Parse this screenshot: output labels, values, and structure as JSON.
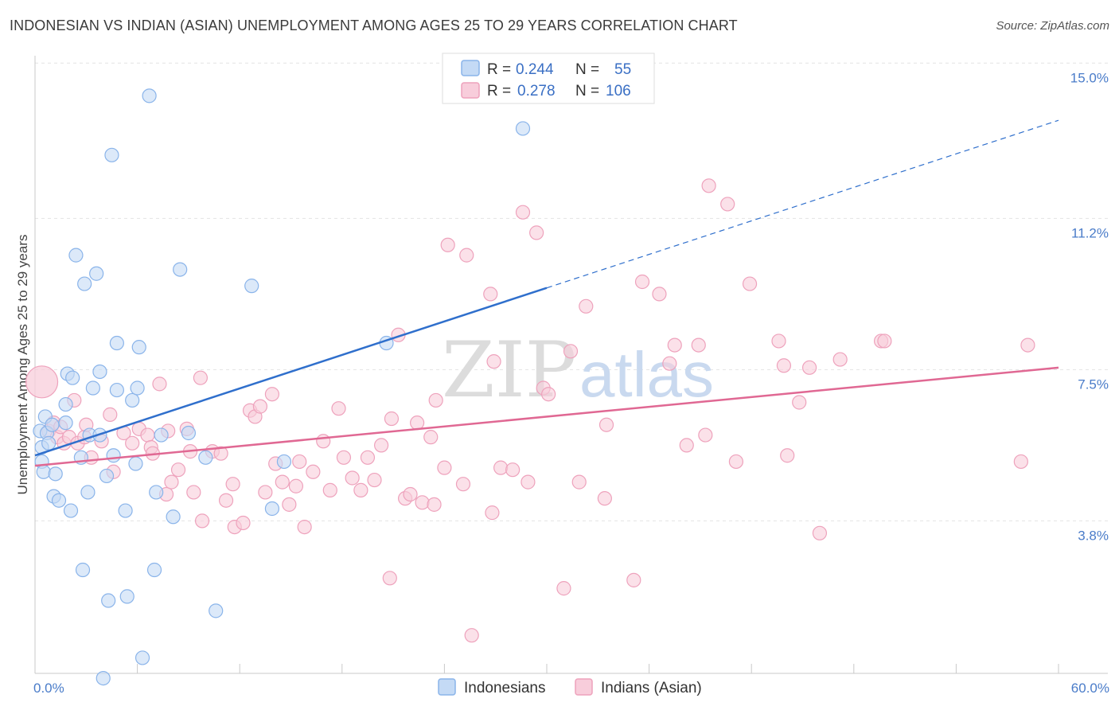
{
  "title": "INDONESIAN VS INDIAN (ASIAN) UNEMPLOYMENT AMONG AGES 25 TO 29 YEARS CORRELATION CHART",
  "source": "Source: ZipAtlas.com",
  "watermark": {
    "zip": "ZIP",
    "atlas": "atlas"
  },
  "chart_data": {
    "type": "scatter",
    "title": "INDONESIAN VS INDIAN (ASIAN) UNEMPLOYMENT AMONG AGES 25 TO 29 YEARS CORRELATION CHART",
    "xlabel": "",
    "ylabel": "Unemployment Among Ages 25 to 29 years",
    "xlim": [
      0,
      60
    ],
    "ylim": [
      0,
      15.4
    ],
    "x_tick_labels": {
      "min": "0.0%",
      "max": "60.0%"
    },
    "y_ticks": [
      {
        "value": 3.8,
        "label": "3.8%"
      },
      {
        "value": 7.5,
        "label": "7.5%"
      },
      {
        "value": 11.2,
        "label": "11.2%"
      },
      {
        "value": 15.0,
        "label": "15.0%"
      }
    ],
    "legend": {
      "r_label": "R =",
      "n_label": "N =",
      "entries": [
        {
          "name": "Indonesians",
          "r": "0.244",
          "n": "55",
          "color": "#8ab4ea",
          "fill": "#c4daf5",
          "line": "#2f6fcc"
        },
        {
          "name": "Indians (Asian)",
          "r": "0.278",
          "n": "106",
          "color": "#eea2bc",
          "fill": "#f8cddb",
          "line": "#e06893"
        }
      ]
    },
    "series": [
      {
        "name": "Indonesians",
        "trend": {
          "x": [
            0,
            30
          ],
          "y": [
            5.75,
            9.85
          ]
        },
        "trend_ext": {
          "x": [
            30,
            60
          ],
          "y": [
            9.85,
            13.95
          ]
        },
        "points": [
          [
            0.3,
            6.35
          ],
          [
            0.4,
            5.95
          ],
          [
            0.4,
            5.6
          ],
          [
            0.5,
            5.35
          ],
          [
            0.6,
            6.7
          ],
          [
            0.7,
            6.3
          ],
          [
            0.8,
            6.05
          ],
          [
            1.0,
            6.5
          ],
          [
            1.1,
            4.75
          ],
          [
            1.2,
            5.3
          ],
          [
            1.4,
            4.65
          ],
          [
            1.8,
            7.0
          ],
          [
            1.8,
            6.55
          ],
          [
            1.9,
            7.75
          ],
          [
            2.1,
            4.4
          ],
          [
            2.2,
            7.65
          ],
          [
            2.4,
            10.65
          ],
          [
            2.7,
            5.7
          ],
          [
            2.8,
            2.95
          ],
          [
            2.9,
            9.95
          ],
          [
            3.1,
            4.85
          ],
          [
            3.2,
            6.25
          ],
          [
            3.4,
            7.4
          ],
          [
            3.6,
            10.2
          ],
          [
            3.8,
            6.25
          ],
          [
            3.8,
            7.8
          ],
          [
            4.0,
            0.3
          ],
          [
            4.2,
            5.25
          ],
          [
            4.3,
            2.2
          ],
          [
            4.5,
            13.1
          ],
          [
            4.6,
            5.75
          ],
          [
            4.8,
            8.5
          ],
          [
            4.8,
            7.35
          ],
          [
            5.3,
            4.4
          ],
          [
            5.4,
            2.3
          ],
          [
            5.7,
            7.1
          ],
          [
            5.9,
            5.55
          ],
          [
            6.0,
            7.4
          ],
          [
            6.1,
            8.4
          ],
          [
            6.3,
            0.8
          ],
          [
            6.7,
            14.55
          ],
          [
            7.0,
            2.95
          ],
          [
            7.1,
            4.85
          ],
          [
            7.4,
            6.25
          ],
          [
            8.1,
            4.25
          ],
          [
            8.5,
            10.3
          ],
          [
            9.0,
            6.3
          ],
          [
            10.0,
            5.7
          ],
          [
            10.6,
            1.95
          ],
          [
            12.7,
            9.9
          ],
          [
            13.9,
            4.45
          ],
          [
            14.6,
            5.6
          ],
          [
            20.6,
            8.5
          ],
          [
            28.6,
            13.75
          ]
        ]
      },
      {
        "name": "Indians (Asian)",
        "trend": {
          "x": [
            0,
            60
          ],
          "y": [
            5.5,
            7.9
          ]
        },
        "points": [
          [
            0.4,
            7.55
          ],
          [
            0.8,
            6.35
          ],
          [
            1.1,
            6.55
          ],
          [
            1.3,
            6.2
          ],
          [
            1.5,
            6.45
          ],
          [
            1.7,
            6.05
          ],
          [
            2.0,
            6.2
          ],
          [
            2.3,
            7.1
          ],
          [
            2.5,
            6.05
          ],
          [
            2.9,
            6.2
          ],
          [
            3.0,
            6.5
          ],
          [
            3.3,
            5.7
          ],
          [
            3.9,
            6.1
          ],
          [
            4.4,
            6.75
          ],
          [
            4.6,
            5.35
          ],
          [
            5.2,
            6.3
          ],
          [
            5.7,
            6.05
          ],
          [
            6.1,
            6.4
          ],
          [
            6.6,
            6.25
          ],
          [
            6.8,
            5.95
          ],
          [
            6.9,
            5.8
          ],
          [
            7.3,
            7.5
          ],
          [
            7.7,
            4.8
          ],
          [
            7.8,
            6.35
          ],
          [
            8.0,
            5.1
          ],
          [
            8.4,
            5.4
          ],
          [
            8.9,
            6.4
          ],
          [
            9.1,
            5.85
          ],
          [
            9.3,
            4.85
          ],
          [
            9.7,
            7.65
          ],
          [
            9.8,
            4.15
          ],
          [
            10.4,
            5.85
          ],
          [
            10.9,
            5.8
          ],
          [
            11.2,
            4.65
          ],
          [
            11.6,
            5.05
          ],
          [
            11.7,
            4.0
          ],
          [
            12.2,
            4.1
          ],
          [
            12.6,
            6.85
          ],
          [
            12.9,
            6.7
          ],
          [
            13.2,
            6.95
          ],
          [
            13.5,
            4.85
          ],
          [
            13.9,
            7.25
          ],
          [
            14.1,
            5.55
          ],
          [
            14.5,
            5.1
          ],
          [
            14.9,
            4.55
          ],
          [
            15.3,
            5.0
          ],
          [
            15.5,
            5.6
          ],
          [
            15.8,
            4.0
          ],
          [
            16.3,
            5.35
          ],
          [
            16.9,
            6.1
          ],
          [
            17.3,
            4.9
          ],
          [
            17.8,
            6.9
          ],
          [
            18.1,
            5.7
          ],
          [
            18.6,
            5.2
          ],
          [
            19.1,
            4.9
          ],
          [
            19.5,
            5.7
          ],
          [
            19.9,
            5.15
          ],
          [
            20.3,
            6.0
          ],
          [
            20.8,
            2.75
          ],
          [
            20.9,
            6.65
          ],
          [
            21.3,
            8.7
          ],
          [
            21.7,
            4.7
          ],
          [
            22.0,
            4.8
          ],
          [
            22.4,
            6.55
          ],
          [
            22.7,
            4.6
          ],
          [
            23.2,
            6.2
          ],
          [
            23.4,
            4.55
          ],
          [
            23.5,
            7.1
          ],
          [
            24.0,
            5.45
          ],
          [
            24.2,
            10.9
          ],
          [
            25.1,
            5.05
          ],
          [
            25.3,
            10.65
          ],
          [
            25.6,
            1.35
          ],
          [
            26.7,
            9.7
          ],
          [
            26.8,
            4.35
          ],
          [
            26.9,
            8.05
          ],
          [
            27.3,
            5.45
          ],
          [
            28.0,
            5.4
          ],
          [
            28.6,
            11.7
          ],
          [
            28.9,
            5.1
          ],
          [
            29.4,
            11.2
          ],
          [
            29.8,
            7.4
          ],
          [
            30.1,
            7.25
          ],
          [
            31.0,
            2.5
          ],
          [
            31.4,
            8.3
          ],
          [
            31.9,
            5.1
          ],
          [
            32.3,
            9.4
          ],
          [
            33.4,
            4.7
          ],
          [
            33.5,
            6.5
          ],
          [
            35.1,
            2.7
          ],
          [
            35.6,
            10.0
          ],
          [
            36.6,
            9.7
          ],
          [
            37.2,
            8.0
          ],
          [
            37.5,
            8.45
          ],
          [
            38.2,
            6.0
          ],
          [
            38.9,
            8.45
          ],
          [
            39.3,
            6.25
          ],
          [
            39.5,
            12.35
          ],
          [
            40.6,
            11.9
          ],
          [
            41.1,
            5.6
          ],
          [
            41.9,
            9.95
          ],
          [
            43.6,
            8.55
          ],
          [
            43.9,
            7.95
          ],
          [
            44.1,
            5.75
          ],
          [
            44.8,
            7.05
          ],
          [
            45.4,
            7.9
          ],
          [
            46.0,
            3.85
          ],
          [
            47.2,
            8.1
          ],
          [
            49.6,
            8.55
          ],
          [
            49.8,
            8.55
          ],
          [
            57.8,
            5.6
          ],
          [
            58.2,
            8.45
          ]
        ]
      }
    ]
  }
}
